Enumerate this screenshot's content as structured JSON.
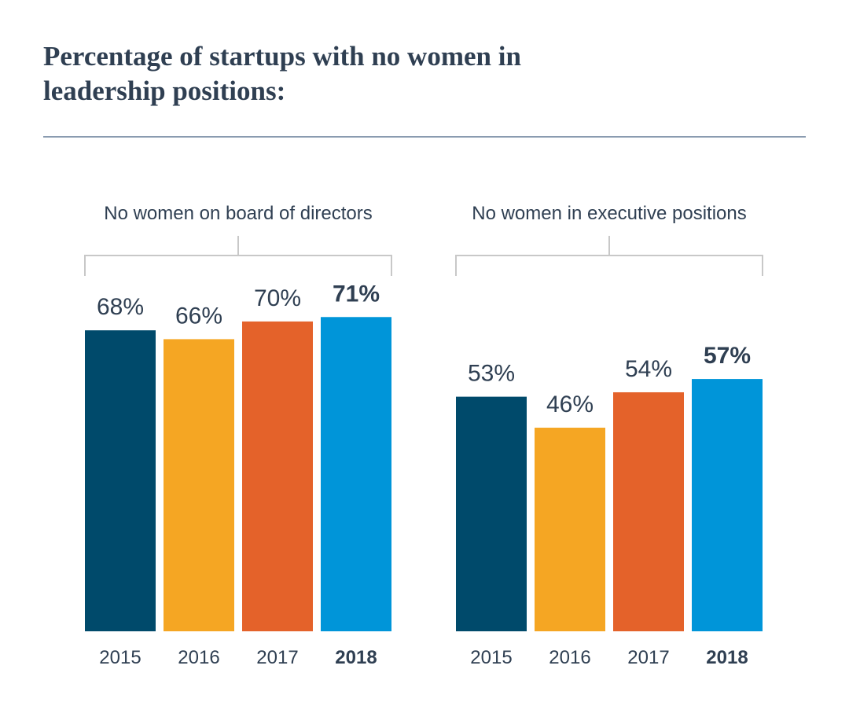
{
  "title": "Percentage of startups with no women in leadership positions:",
  "chart_data": [
    {
      "type": "bar",
      "title": "No women on board of directors",
      "categories": [
        "2015",
        "2016",
        "2017",
        "2018"
      ],
      "values": [
        68,
        66,
        70,
        71
      ],
      "value_labels": [
        "68%",
        "66%",
        "70%",
        "71%"
      ],
      "colors": [
        "#004a6b",
        "#f5a623",
        "#e4622a",
        "#0095d9"
      ]
    },
    {
      "type": "bar",
      "title": "No women in executive positions",
      "categories": [
        "2015",
        "2016",
        "2017",
        "2018"
      ],
      "values": [
        53,
        46,
        54,
        57
      ],
      "value_labels": [
        "53%",
        "46%",
        "54%",
        "57%"
      ],
      "colors": [
        "#004a6b",
        "#f5a623",
        "#e4622a",
        "#0095d9"
      ]
    }
  ]
}
